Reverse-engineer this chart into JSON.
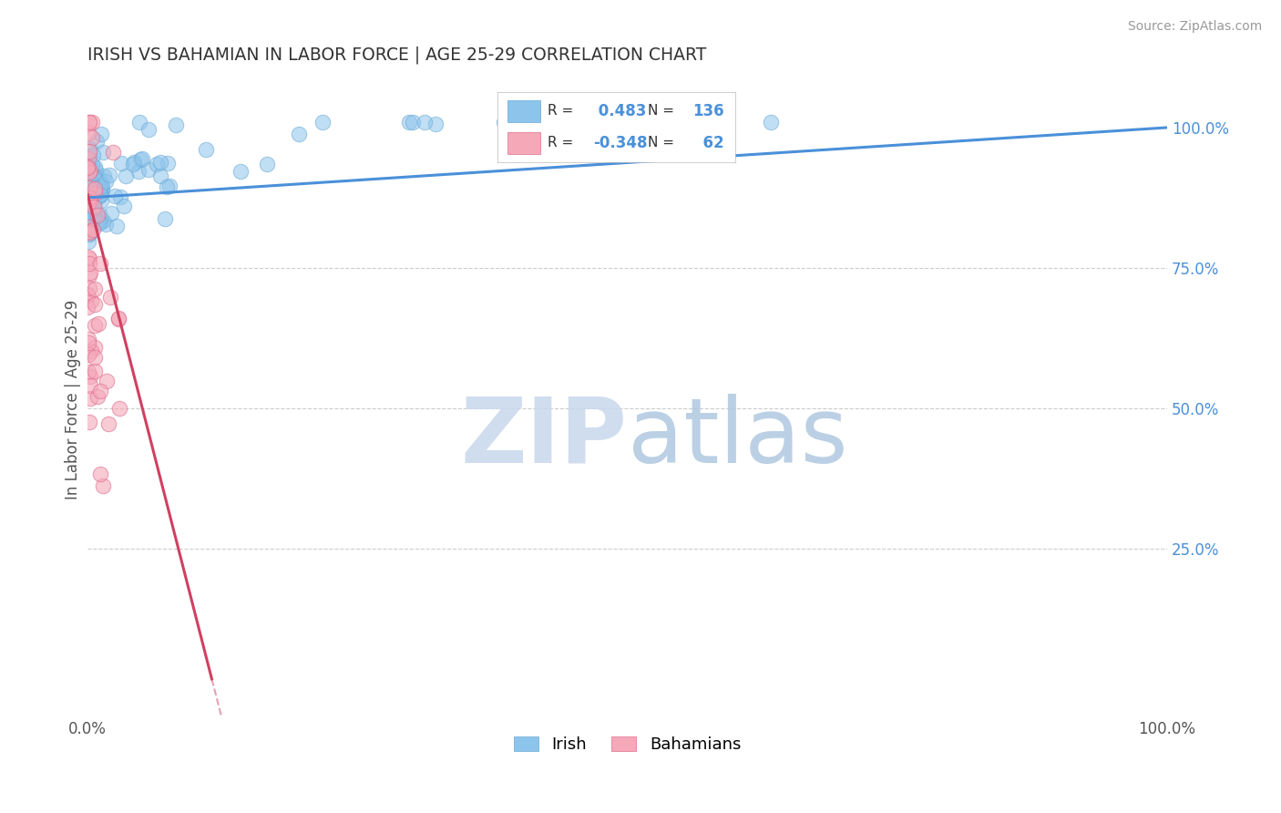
{
  "title": "IRISH VS BAHAMIAN IN LABOR FORCE | AGE 25-29 CORRELATION CHART",
  "source_text": "Source: ZipAtlas.com",
  "ylabel": "In Labor Force | Age 25-29",
  "xlim": [
    0.0,
    1.0
  ],
  "ylim": [
    -0.05,
    1.08
  ],
  "ytick_vals": [
    0.0,
    0.25,
    0.5,
    0.75,
    1.0
  ],
  "right_ytick_labels": [
    "",
    "25.0%",
    "50.0%",
    "75.0%",
    "100.0%"
  ],
  "xtick_vals": [
    0.0,
    1.0
  ],
  "xtick_labels": [
    "0.0%",
    "100.0%"
  ],
  "irish_R": 0.483,
  "irish_N": 136,
  "bahamian_R": -0.348,
  "bahamian_N": 62,
  "irish_color": "#8DC4EC",
  "irish_edge_color": "#6AAAD4",
  "bahamian_color": "#F4A8B8",
  "bahamian_edge_color": "#E07090",
  "irish_line_color": "#4A90D9",
  "bahamian_line_color": "#D04060",
  "bahamian_dash_color": "#E8A0B0",
  "grid_color": "#CCCCCC",
  "background_color": "#FFFFFF",
  "watermark_zip_color": "#C8D8EC",
  "watermark_atlas_color": "#B0C8E0",
  "title_color": "#333333",
  "legend_text_color": "#333333",
  "legend_R_color": "#4A90D9",
  "legend_N_color": "#4A90D9",
  "right_tick_color": "#4A90D9",
  "source_color": "#999999"
}
